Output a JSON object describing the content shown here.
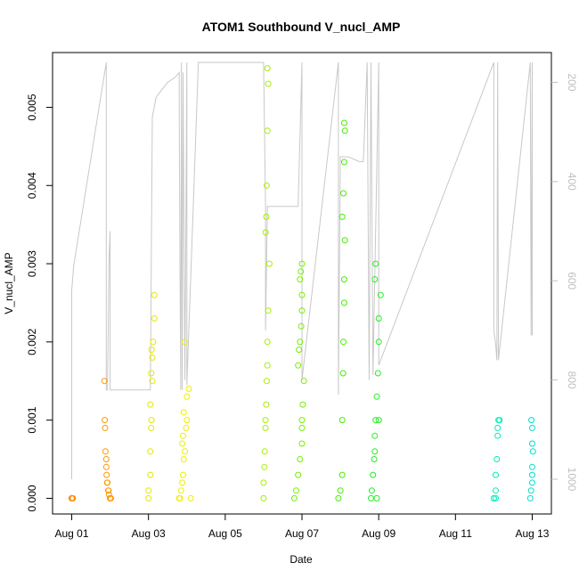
{
  "chart_data": {
    "type": "scatter",
    "title": "ATOM1 Southbound V_nucl_AMP",
    "xlabel": "Date",
    "ylabel": "V_nucl_AMP",
    "x_tick_labels": [
      "Aug 01",
      "Aug 03",
      "Aug 05",
      "Aug 07",
      "Aug 09",
      "Aug 11",
      "Aug 13"
    ],
    "x_tick_days": [
      1,
      3,
      5,
      7,
      9,
      11,
      13
    ],
    "xlim_days": [
      0.5,
      13.5
    ],
    "ylim": [
      -0.0002,
      0.0057
    ],
    "y_ticks": [
      0.0,
      0.001,
      0.002,
      0.003,
      0.004,
      0.005
    ],
    "y_tick_labels": [
      "0.000",
      "0.001",
      "0.002",
      "0.003",
      "0.004",
      "0.005"
    ],
    "y2_tick_values": [
      200,
      400,
      600,
      800,
      1000
    ],
    "y2_tick_labels": [
      "200",
      "400",
      "600",
      "800",
      "1000"
    ],
    "y2_reversed": true,
    "y2lim": [
      1070,
      140
    ],
    "depth_series": {
      "name": "",
      "color": "#c8c8c8",
      "points": [
        [
          1.0,
          1000
        ],
        [
          1.0,
          620
        ],
        [
          1.02,
          600
        ],
        [
          1.05,
          570
        ],
        [
          1.9,
          160
        ],
        [
          1.9,
          820
        ],
        [
          1.93,
          820
        ],
        [
          1.95,
          700
        ],
        [
          1.97,
          560
        ],
        [
          2.0,
          500
        ],
        [
          2.0,
          820
        ],
        [
          3.0,
          820
        ],
        [
          3.05,
          820
        ],
        [
          3.1,
          270
        ],
        [
          3.2,
          230
        ],
        [
          3.5,
          200
        ],
        [
          3.7,
          190
        ],
        [
          3.8,
          180
        ],
        [
          3.8,
          260
        ],
        [
          3.82,
          560
        ],
        [
          3.84,
          820
        ],
        [
          3.86,
          160
        ],
        [
          3.88,
          820
        ],
        [
          3.9,
          180
        ],
        [
          3.95,
          800
        ],
        [
          4.0,
          160
        ],
        [
          4.0,
          810
        ],
        [
          4.3,
          160
        ],
        [
          6.0,
          160
        ],
        [
          6.05,
          450
        ],
        [
          6.05,
          700
        ],
        [
          6.1,
          450
        ],
        [
          6.5,
          450
        ],
        [
          6.7,
          450
        ],
        [
          6.9,
          450
        ],
        [
          7.0,
          160
        ],
        [
          7.0,
          800
        ],
        [
          7.95,
          160
        ],
        [
          7.95,
          830
        ],
        [
          8.0,
          350
        ],
        [
          8.2,
          350
        ],
        [
          8.5,
          360
        ],
        [
          8.6,
          360
        ],
        [
          8.7,
          160
        ],
        [
          8.75,
          800
        ],
        [
          8.8,
          160
        ],
        [
          8.85,
          790
        ],
        [
          9.0,
          160
        ],
        [
          9.0,
          770
        ],
        [
          12.0,
          160
        ],
        [
          12.0,
          700
        ],
        [
          12.05,
          730
        ],
        [
          12.08,
          760
        ],
        [
          12.1,
          160
        ],
        [
          12.12,
          760
        ],
        [
          12.95,
          160
        ],
        [
          12.97,
          710
        ],
        [
          13.0,
          160
        ],
        [
          13.0,
          710
        ]
      ]
    },
    "series": [
      {
        "name": "",
        "color": "#ff8c00",
        "x": [
          1.0,
          1.0,
          1.0,
          1.02,
          1.03
        ],
        "y": [
          0.0,
          0.0,
          0.0,
          0.0,
          0.0
        ]
      },
      {
        "name": "",
        "color": "#ff9900",
        "x": [
          1.85,
          1.86,
          1.87,
          1.88,
          1.9,
          1.9,
          1.91,
          1.92,
          1.93,
          1.95,
          1.96,
          1.97,
          2.0,
          2.0,
          2.0,
          2.02
        ],
        "y": [
          0.0015,
          0.001,
          0.0009,
          0.0006,
          0.0005,
          0.0004,
          0.0003,
          0.0002,
          0.0002,
          0.0001,
          0.0001,
          5e-05,
          0.0,
          0.0,
          0.0,
          0.0
        ]
      },
      {
        "name": "",
        "color": "#e6e600",
        "x": [
          3.0,
          3.0,
          3.05,
          3.05,
          3.07,
          3.08,
          3.1,
          3.1,
          3.12,
          3.15,
          3.15,
          3.05,
          3.07,
          3.08
        ],
        "y": [
          0.0,
          0.0001,
          0.0003,
          0.0006,
          0.0009,
          0.001,
          0.0015,
          0.0018,
          0.002,
          0.0023,
          0.0026,
          0.0012,
          0.0016,
          0.0019
        ]
      },
      {
        "name": "",
        "color": "#eeee00",
        "x": [
          3.8,
          3.82,
          3.85,
          3.88,
          3.9,
          3.92,
          3.95,
          3.98,
          4.0,
          4.0,
          4.05,
          4.1,
          3.88,
          3.9,
          3.92,
          3.95
        ],
        "y": [
          0.0,
          0.0,
          0.0001,
          0.0002,
          0.0003,
          0.0005,
          0.0006,
          0.0009,
          0.001,
          0.0013,
          0.0014,
          0.0,
          0.0007,
          0.0008,
          0.0011,
          0.002
        ]
      },
      {
        "name": "",
        "color": "#aaee00",
        "x": [
          6.0,
          6.0,
          6.02,
          6.03,
          6.05,
          6.05,
          6.07,
          6.08,
          6.1,
          6.1,
          6.12,
          6.15,
          6.05,
          6.07,
          6.08,
          6.1,
          6.12,
          6.1
        ],
        "y": [
          0.0,
          0.0002,
          0.0004,
          0.0006,
          0.0009,
          0.001,
          0.0012,
          0.0015,
          0.0017,
          0.002,
          0.0024,
          0.003,
          0.0034,
          0.0036,
          0.004,
          0.0047,
          0.0053,
          0.0055
        ]
      },
      {
        "name": "",
        "color": "#77ee00",
        "x": [
          6.8,
          6.85,
          6.9,
          6.95,
          7.0,
          7.0,
          7.0,
          7.02,
          7.05,
          6.9,
          6.92,
          6.95,
          6.98,
          7.0,
          7.0,
          6.95,
          6.97,
          7.0
        ],
        "y": [
          0.0,
          0.0001,
          0.0003,
          0.0005,
          0.0007,
          0.0009,
          0.001,
          0.0012,
          0.0015,
          0.0017,
          0.0019,
          0.002,
          0.0022,
          0.0024,
          0.0026,
          0.0028,
          0.0029,
          0.003
        ]
      },
      {
        "name": "",
        "color": "#44ee00",
        "x": [
          7.95,
          8.0,
          8.05,
          8.05,
          8.07,
          8.08,
          8.1,
          8.1,
          8.12,
          8.05,
          8.08,
          8.1,
          8.12,
          8.1
        ],
        "y": [
          0.0,
          0.0001,
          0.0003,
          0.001,
          0.0016,
          0.002,
          0.0025,
          0.0028,
          0.0033,
          0.0036,
          0.0039,
          0.0043,
          0.0047,
          0.0048
        ]
      },
      {
        "name": "",
        "color": "#22ee22",
        "x": [
          8.8,
          8.82,
          8.85,
          8.88,
          8.9,
          8.9,
          8.92,
          8.95,
          8.98,
          9.0,
          9.0,
          9.05,
          8.9,
          8.92,
          8.95,
          9.0
        ],
        "y": [
          0.0,
          0.0001,
          0.0003,
          0.0005,
          0.0006,
          0.0008,
          0.001,
          0.0013,
          0.0016,
          0.002,
          0.0023,
          0.0026,
          0.0028,
          0.003,
          0.0,
          0.001
        ]
      },
      {
        "name": "",
        "color": "#00eebb",
        "x": [
          12.0,
          12.05,
          12.05,
          12.08,
          12.1,
          12.1,
          12.12,
          12.15,
          12.0,
          12.05
        ],
        "y": [
          0.0,
          0.0001,
          0.0003,
          0.0005,
          0.0008,
          0.0009,
          0.001,
          0.001,
          0.0,
          0.0
        ]
      },
      {
        "name": "",
        "color": "#00ddcc",
        "x": [
          12.95,
          12.97,
          13.0,
          13.0,
          13.0,
          13.02,
          13.0,
          13.0,
          12.98
        ],
        "y": [
          0.0,
          0.0001,
          0.0002,
          0.0003,
          0.0004,
          0.0006,
          0.0007,
          0.0009,
          0.001
        ]
      }
    ]
  }
}
